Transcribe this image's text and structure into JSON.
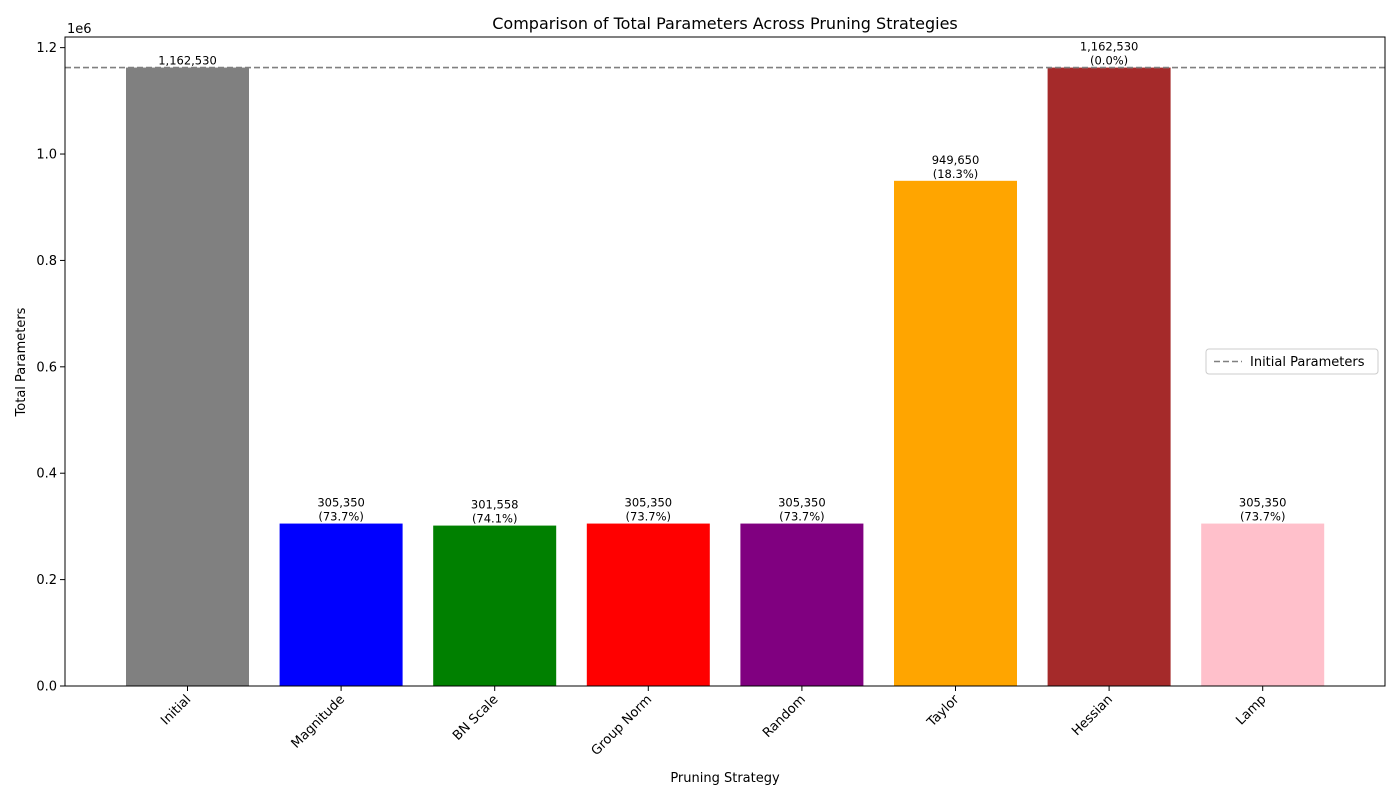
{
  "chart_data": {
    "type": "bar",
    "title": "Comparison of Total Parameters Across Pruning Strategies",
    "xlabel": "Pruning Strategy",
    "ylabel": "Total Parameters",
    "y_offset_label": "1e6",
    "ylim": [
      0,
      1220000
    ],
    "yticks": [
      0,
      200000,
      400000,
      600000,
      800000,
      1000000,
      1200000
    ],
    "ytick_labels": [
      "0.0",
      "0.2",
      "0.4",
      "0.6",
      "0.8",
      "1.0",
      "1.2"
    ],
    "categories": [
      "Initial",
      "Magnitude",
      "BN Scale",
      "Group Norm",
      "Random",
      "Taylor",
      "Hessian",
      "Lamp"
    ],
    "values": [
      1162530,
      305350,
      301558,
      305350,
      305350,
      949650,
      1162530,
      305350
    ],
    "colors": [
      "#808080",
      "#0000ff",
      "#008000",
      "#ff0000",
      "#800080",
      "#ffa500",
      "#a52a2a",
      "#ffc0cb"
    ],
    "value_labels": [
      "1,162,530",
      "305,350",
      "301,558",
      "305,350",
      "305,350",
      "949,650",
      "1,162,530",
      "305,350"
    ],
    "reduction_labels": [
      "",
      "(73.7%)",
      "(74.1%)",
      "(73.7%)",
      "(73.7%)",
      "(18.3%)",
      "(0.0%)",
      "(73.7%)"
    ],
    "reference_line": {
      "value": 1162530,
      "name": "Initial Parameters",
      "color": "#808080",
      "style": "dashed"
    },
    "legend": {
      "location": "center-right",
      "entries": [
        "Initial Parameters"
      ]
    },
    "grid": false
  }
}
